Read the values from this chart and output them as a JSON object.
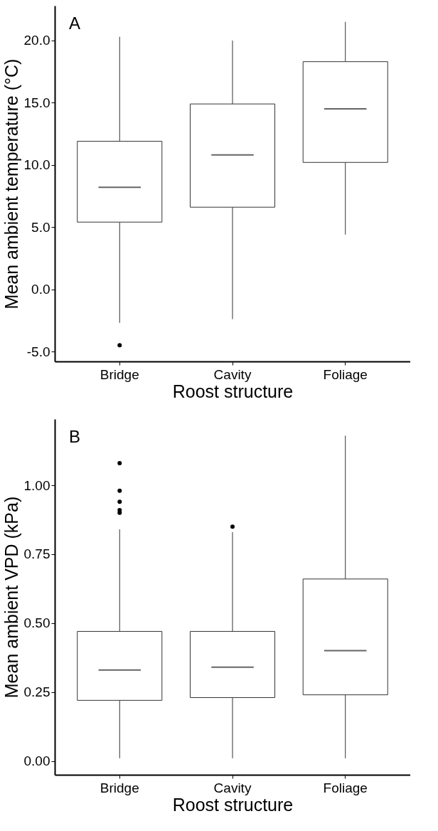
{
  "chart_data": [
    {
      "type": "box",
      "annotations": [
        "A"
      ],
      "xlabel": "Roost structure",
      "ylabel": "Mean ambient temperature (°C)",
      "categories": [
        "Bridge",
        "Cavity",
        "Foliage"
      ],
      "boxes": [
        {
          "low": -2.7,
          "q1": 5.4,
          "median": 8.2,
          "q3": 11.9,
          "high": 20.3,
          "outliers": [
            -4.5
          ]
        },
        {
          "low": -2.4,
          "q1": 6.6,
          "median": 10.8,
          "q3": 14.9,
          "high": 20.0
        },
        {
          "low": 4.4,
          "q1": 10.2,
          "median": 14.5,
          "q3": 18.3,
          "high": 21.5
        }
      ],
      "ylim": [
        -5.8,
        22.8
      ],
      "yticks": [
        {
          "value": -5,
          "label": "-5.0"
        },
        {
          "value": 0,
          "label": "0.0"
        },
        {
          "value": 5,
          "label": "5.0"
        },
        {
          "value": 10,
          "label": "10.0"
        },
        {
          "value": 15,
          "label": "15.0"
        },
        {
          "value": 20,
          "label": "20.0"
        }
      ]
    },
    {
      "type": "box",
      "annotations": [
        "B"
      ],
      "xlabel": "Roost structure",
      "ylabel": "Mean ambient VPD (kPa)",
      "categories": [
        "Bridge",
        "Cavity",
        "Foliage"
      ],
      "boxes": [
        {
          "low": 0.01,
          "q1": 0.22,
          "median": 0.33,
          "q3": 0.47,
          "high": 0.84,
          "outliers": [
            1.08,
            0.98,
            0.94,
            0.91,
            0.9
          ]
        },
        {
          "low": 0.01,
          "q1": 0.23,
          "median": 0.34,
          "q3": 0.47,
          "high": 0.83,
          "outliers": [
            0.85
          ]
        },
        {
          "low": 0.01,
          "q1": 0.24,
          "median": 0.4,
          "q3": 0.66,
          "high": 1.18
        }
      ],
      "ylim": [
        -0.05,
        1.24
      ],
      "yticks": [
        {
          "value": 0,
          "label": "0.00"
        },
        {
          "value": 0.25,
          "label": "0.25"
        },
        {
          "value": 0.5,
          "label": "0.50"
        },
        {
          "value": 0.75,
          "label": "0.75"
        },
        {
          "value": 1,
          "label": "1.00"
        }
      ]
    }
  ]
}
